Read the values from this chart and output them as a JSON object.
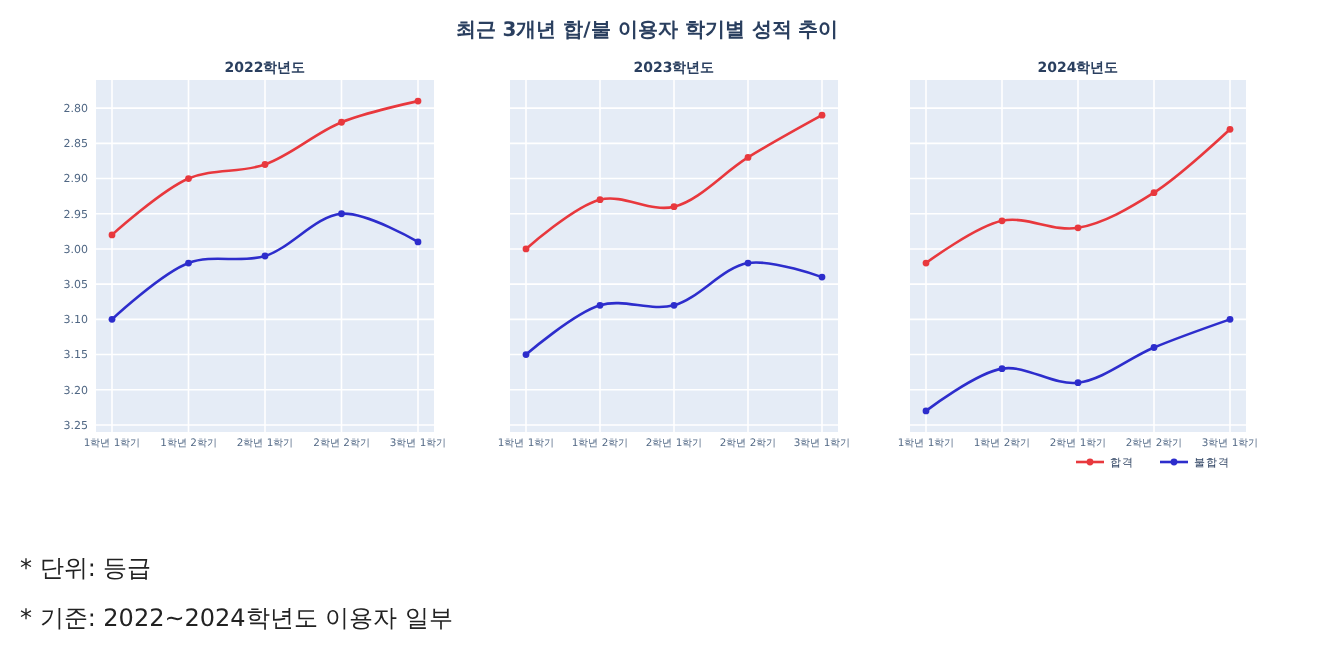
{
  "chart_data": [
    {
      "type": "line",
      "title": "2022학년도",
      "categories": [
        "1학년 1학기",
        "1학년 2학기",
        "2학년 1학기",
        "2학년 2학기",
        "3학년 1학기"
      ],
      "ylim": [
        3.26,
        2.76
      ],
      "yticks": [
        {
          "value": 2.8,
          "label": "2.80"
        },
        2.85,
        {
          "value": 2.9,
          "label": "2.90"
        },
        2.95,
        {
          "value": 3.0,
          "label": "3.00"
        },
        3.05,
        {
          "value": 3.1,
          "label": "3.10"
        },
        3.15,
        {
          "value": 3.2,
          "label": "3.20"
        },
        3.25
      ],
      "grid": true,
      "marker": "circle",
      "legend": false,
      "series": [
        {
          "color": "#e8383d",
          "values": [
            2.98,
            2.9,
            2.88,
            2.82,
            2.79
          ]
        },
        {
          "color": "#2d2dcc",
          "values": [
            3.1,
            3.02,
            3.01,
            2.95,
            2.99
          ]
        }
      ]
    },
    {
      "type": "line",
      "title": "2023학년도",
      "categories": [
        "1학년 1학기",
        "1학년 2학기",
        "2학년 1학기",
        "2학년 2학기",
        "3학년 1학기"
      ],
      "ylim": [
        3.26,
        2.76
      ],
      "yticks": [
        2.8,
        2.85,
        2.9,
        2.95,
        3.0,
        3.05,
        3.1,
        3.15,
        3.2,
        3.25
      ],
      "tick_labels": "x",
      "grid": true,
      "marker": "circle",
      "legend": false,
      "series": [
        {
          "color": "#e8383d",
          "values": [
            3.0,
            2.93,
            2.94,
            2.87,
            2.81
          ]
        },
        {
          "color": "#2d2dcc",
          "values": [
            3.15,
            3.08,
            3.08,
            3.02,
            3.04
          ]
        }
      ]
    },
    {
      "type": "line",
      "title": "2024학년도",
      "categories": [
        "1학년 1학기",
        "1학년 2학기",
        "2학년 1학기",
        "2학년 2학기",
        "3학년 1학기"
      ],
      "ylim": [
        3.26,
        2.76
      ],
      "yticks": [
        2.8,
        2.85,
        2.9,
        2.95,
        3.0,
        3.05,
        3.1,
        3.15,
        3.2,
        3.25
      ],
      "tick_labels": "x",
      "grid": true,
      "marker": "circle",
      "legend": "bottom right",
      "series": [
        {
          "name": "합격",
          "color": "#e8383d",
          "values": [
            3.02,
            2.96,
            2.97,
            2.92,
            2.83
          ]
        },
        {
          "name": "불합격",
          "color": "#2d2dcc",
          "values": [
            3.23,
            3.17,
            3.19,
            3.14,
            3.1
          ]
        }
      ]
    },
    {
      "type": "other",
      "title": "최근 3개년 합/불 이용자 학기별 성적 추이",
      "annotations": [
        "* 단위: 등급",
        "* 기준: 2022~2024학년도 이용자 일부"
      ]
    }
  ]
}
